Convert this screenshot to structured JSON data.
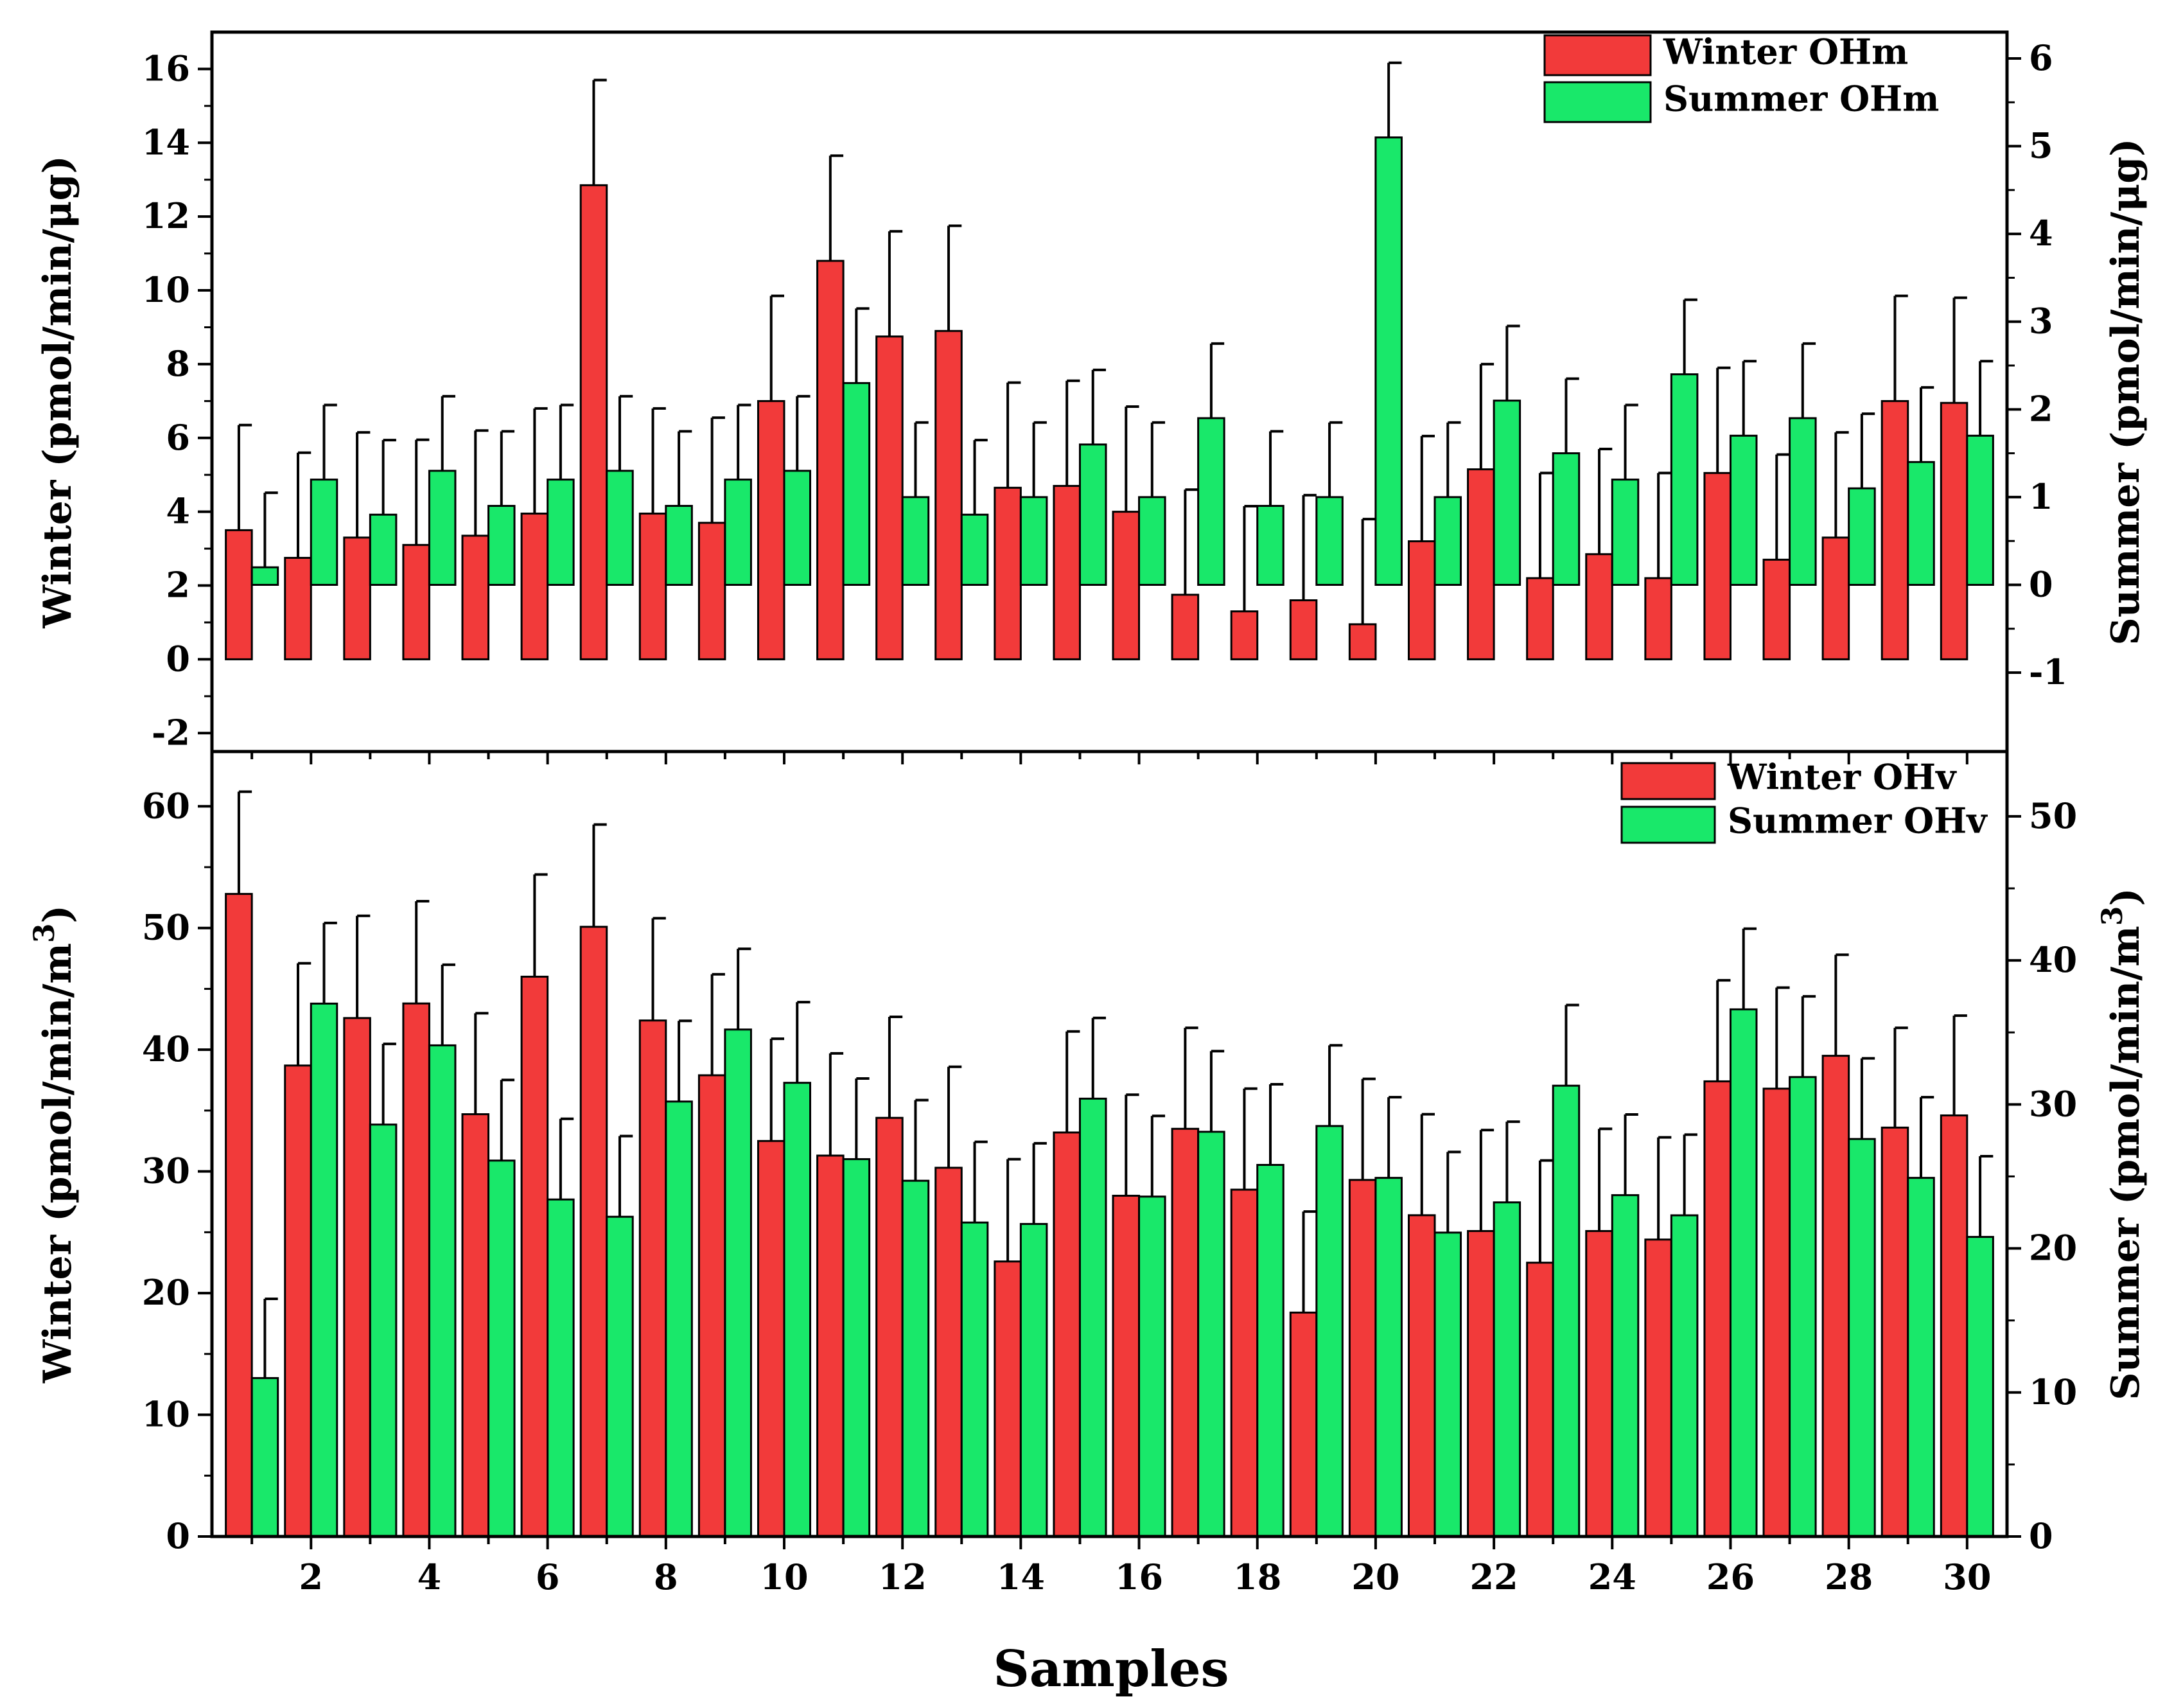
{
  "figure": {
    "xlabel": "Samples"
  },
  "colors": {
    "winter": "#f23a3a",
    "summer": "#19e86a",
    "stroke": "#000000"
  },
  "chart_data": [
    {
      "type": "bar",
      "panel": "top",
      "xlabel": "Samples",
      "ylabel_left": "Winter (pmol/min/μg)",
      "ylabel_right": "Summer (pmol/min/μg)",
      "categories": [
        1,
        2,
        3,
        4,
        5,
        6,
        7,
        8,
        9,
        10,
        11,
        12,
        13,
        14,
        15,
        16,
        17,
        18,
        19,
        20,
        21,
        22,
        23,
        24,
        25,
        26,
        27,
        28,
        29,
        30
      ],
      "xticks": [
        "2",
        "4",
        "6",
        "8",
        "10",
        "12",
        "14",
        "16",
        "18",
        "20",
        "22",
        "24",
        "26",
        "28",
        "30"
      ],
      "ylim_left": [
        -2.5,
        17
      ],
      "yticks_left": [
        "-2",
        "0",
        "2",
        "4",
        "6",
        "8",
        "10",
        "12",
        "14",
        "16"
      ],
      "ylim_right": [
        -1.9,
        6.3
      ],
      "yticks_right": [
        "-1",
        "0",
        "1",
        "2",
        "3",
        "4",
        "5",
        "6"
      ],
      "legend_position": "top-right",
      "series": [
        {
          "name": "Winter OHm",
          "axis": "left",
          "values": [
            3.5,
            2.75,
            3.3,
            3.1,
            3.35,
            3.95,
            12.85,
            3.95,
            3.7,
            7.0,
            10.8,
            8.75,
            8.9,
            4.65,
            4.7,
            4.0,
            1.75,
            1.3,
            1.6,
            0.95,
            3.2,
            5.15,
            2.2,
            2.85,
            2.2,
            5.05,
            2.7,
            3.3,
            7.0,
            6.95
          ],
          "errors": [
            2.85,
            2.85,
            2.85,
            2.85,
            2.85,
            2.85,
            2.85,
            2.85,
            2.85,
            2.85,
            2.85,
            2.85,
            2.85,
            2.85,
            2.85,
            2.85,
            2.85,
            2.85,
            2.85,
            2.85,
            2.85,
            2.85,
            2.85,
            2.85,
            2.85,
            2.85,
            2.85,
            2.85,
            2.85,
            2.85
          ]
        },
        {
          "name": "Summer OHm",
          "axis": "right",
          "values": [
            0.2,
            1.2,
            0.8,
            1.3,
            0.9,
            1.2,
            1.3,
            0.9,
            1.2,
            1.3,
            2.3,
            1.0,
            0.8,
            1.0,
            1.6,
            1.0,
            1.9,
            0.9,
            1.0,
            5.1,
            1.0,
            2.1,
            1.5,
            1.2,
            2.4,
            1.7,
            1.9,
            1.1,
            1.4,
            1.7
          ],
          "errors": [
            0.85,
            0.85,
            0.85,
            0.85,
            0.85,
            0.85,
            0.85,
            0.85,
            0.85,
            0.85,
            0.85,
            0.85,
            0.85,
            0.85,
            0.85,
            0.85,
            0.85,
            0.85,
            0.85,
            0.85,
            0.85,
            0.85,
            0.85,
            0.85,
            0.85,
            0.85,
            0.85,
            0.85,
            0.85,
            0.85
          ]
        }
      ]
    },
    {
      "type": "bar",
      "panel": "bottom",
      "xlabel": "Samples",
      "ylabel_left": "Winter (pmol/min/m",
      "ylabel_left_sup": "3",
      "ylabel_left_end": ")",
      "ylabel_right": "Summer (pmol/min/m",
      "ylabel_right_sup": "3",
      "ylabel_right_end": ")",
      "categories": [
        1,
        2,
        3,
        4,
        5,
        6,
        7,
        8,
        9,
        10,
        11,
        12,
        13,
        14,
        15,
        16,
        17,
        18,
        19,
        20,
        21,
        22,
        23,
        24,
        25,
        26,
        27,
        28,
        29,
        30
      ],
      "xticks": [
        "2",
        "4",
        "6",
        "8",
        "10",
        "12",
        "14",
        "16",
        "18",
        "20",
        "22",
        "24",
        "26",
        "28",
        "30"
      ],
      "ylim_left": [
        0,
        64.5
      ],
      "yticks_left": [
        "0",
        "10",
        "20",
        "30",
        "40",
        "50",
        "60"
      ],
      "ylim_right": [
        0,
        54.5
      ],
      "yticks_right": [
        "0",
        "10",
        "20",
        "30",
        "40",
        "50"
      ],
      "legend_position": "top-right",
      "series": [
        {
          "name": "Winter OHv",
          "axis": "left",
          "values": [
            52.8,
            38.7,
            42.6,
            43.8,
            34.7,
            46.0,
            50.1,
            42.4,
            37.9,
            32.5,
            31.3,
            34.4,
            30.3,
            22.6,
            33.2,
            28.0,
            33.5,
            28.5,
            18.4,
            29.3,
            26.4,
            25.1,
            22.5,
            25.1,
            24.4,
            37.4,
            36.8,
            39.5,
            33.6,
            34.6
          ],
          "errors": [
            8.4,
            8.4,
            8.4,
            8.4,
            8.3,
            8.4,
            8.4,
            8.4,
            8.3,
            8.4,
            8.4,
            8.3,
            8.3,
            8.4,
            8.3,
            8.3,
            8.3,
            8.3,
            8.3,
            8.3,
            8.3,
            8.3,
            8.4,
            8.4,
            8.4,
            8.3,
            8.3,
            8.3,
            8.2,
            8.2
          ]
        },
        {
          "name": "Summer OHv",
          "axis": "right",
          "values": [
            11.0,
            37.0,
            28.6,
            34.1,
            26.1,
            23.4,
            22.2,
            30.2,
            35.2,
            31.5,
            26.2,
            24.7,
            21.8,
            21.7,
            30.4,
            23.6,
            28.1,
            25.8,
            28.5,
            24.9,
            21.1,
            23.2,
            31.3,
            23.7,
            22.3,
            36.6,
            31.9,
            27.6,
            24.9,
            20.8
          ],
          "errors": [
            5.5,
            5.6,
            5.6,
            5.6,
            5.6,
            5.6,
            5.6,
            5.6,
            5.6,
            5.6,
            5.6,
            5.6,
            5.6,
            5.6,
            5.6,
            5.6,
            5.6,
            5.6,
            5.6,
            5.6,
            5.6,
            5.6,
            5.6,
            5.6,
            5.6,
            5.6,
            5.6,
            5.6,
            5.6,
            5.6
          ]
        }
      ]
    }
  ]
}
